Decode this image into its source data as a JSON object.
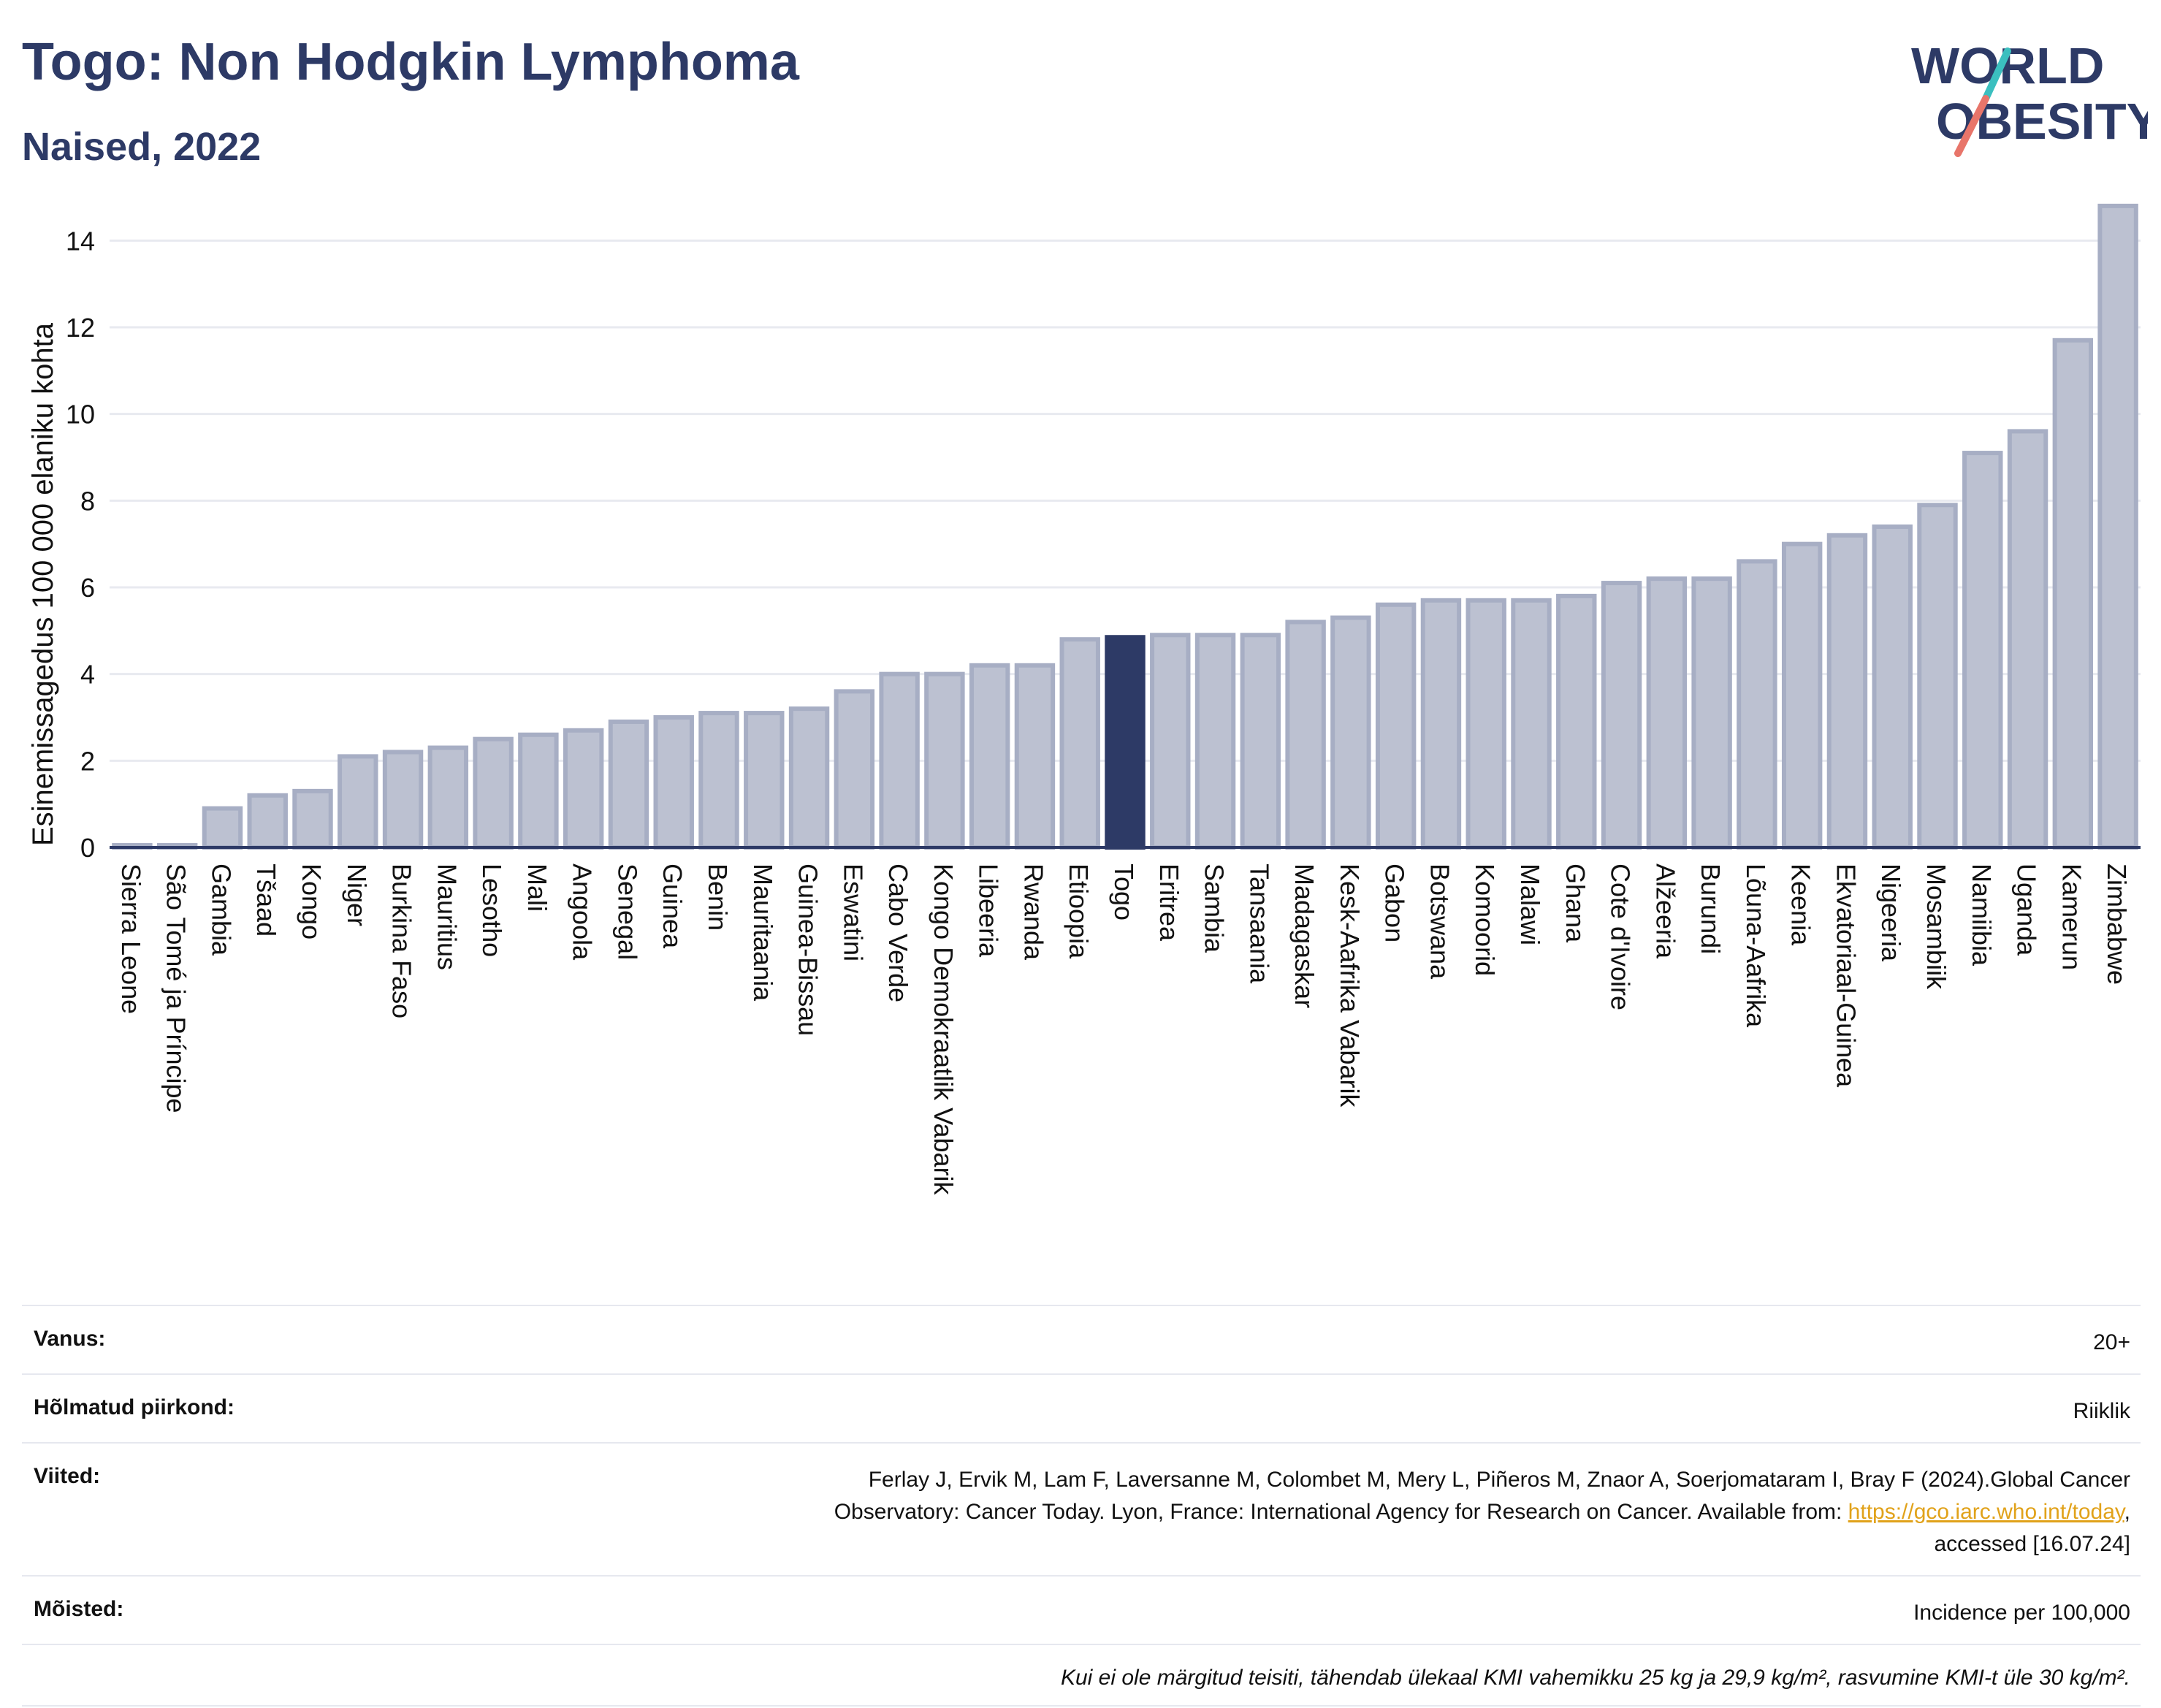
{
  "header": {
    "title": "Togo: Non Hodgkin Lymphoma",
    "subtitle": "Naised, 2022",
    "logo_line1": "WORLD",
    "logo_line2": "OBESITY"
  },
  "colors": {
    "bar": "#bcc1d1",
    "bar_stroke": "#a7aec4",
    "highlight": "#2d3a66",
    "text": "#2d3a66",
    "grid": "#e8eaf0",
    "logo_teal": "#3bbfbf",
    "logo_coral": "#e8756a"
  },
  "chart_data": {
    "type": "bar",
    "ylabel": "Esinemissagedus 100 000 elaniku kohta",
    "xlabel": "",
    "ylim": [
      0,
      15
    ],
    "yticks": [
      0,
      2,
      4,
      6,
      8,
      10,
      12,
      14
    ],
    "highlight": "Togo",
    "categories": [
      "Sierra Leone",
      "São Tomé ja Príncipe",
      "Gambia",
      "Tšaad",
      "Kongo",
      "Niger",
      "Burkina Faso",
      "Mauritius",
      "Lesotho",
      "Mali",
      "Angoola",
      "Senegal",
      "Guinea",
      "Benin",
      "Mauritaania",
      "Guinea-Bissau",
      "Eswatini",
      "Cabo Verde",
      "Kongo Demokraatlik Vabarik",
      "Libeeria",
      "Rwanda",
      "Etioopia",
      "Togo",
      "Eritrea",
      "Sambia",
      "Tansaania",
      "Madagaskar",
      "Kesk-Aafrika Vabarik",
      "Gabon",
      "Botswana",
      "Komoorid",
      "Malawi",
      "Ghana",
      "Cote d'Ivoire",
      "Alžeeria",
      "Burundi",
      "Lõuna-Aafrika",
      "Keenia",
      "Ekvatoriaal-Guinea",
      "Nigeeria",
      "Mosambiik",
      "Namiibia",
      "Uganda",
      "Kamerun",
      "Zimbabwe"
    ],
    "values": [
      0.05,
      0.05,
      0.9,
      1.2,
      1.3,
      2.1,
      2.2,
      2.3,
      2.5,
      2.6,
      2.7,
      2.9,
      3.0,
      3.1,
      3.1,
      3.2,
      3.6,
      4.0,
      4.0,
      4.2,
      4.2,
      4.8,
      4.85,
      4.9,
      4.9,
      4.9,
      5.2,
      5.3,
      5.6,
      5.7,
      5.7,
      5.7,
      5.8,
      6.1,
      6.2,
      6.2,
      6.6,
      7.0,
      7.2,
      7.4,
      7.9,
      9.1,
      9.6,
      11.7,
      14.8
    ]
  },
  "meta": {
    "age_label": "Vanus:",
    "age_value": "20+",
    "region_label": "Hõlmatud piirkond:",
    "region_value": "Riiklik",
    "refs_label": "Viited:",
    "refs_line1": "Ferlay J, Ervik M, Lam F, Laversanne M, Colombet M, Mery L, Piñeros M, Znaor A, Soerjomataram I, Bray F (2024).Global Cancer",
    "refs_line2_pre": "Observatory: Cancer Today. Lyon, France: International Agency for Research on Cancer. Available from: ",
    "refs_link": "https://gco.iarc.who.int/today",
    "refs_line2_post": ",",
    "refs_line3": "accessed [16.07.24]",
    "def_label": "Mõisted:",
    "def_value": "Incidence per 100,000",
    "note": "Kui ei ole märgitud teisiti, tähendab ülekaal KMI vahemikku 25 kg ja 29,9 kg/m², rasvumine KMI-t üle 30 kg/m²."
  }
}
